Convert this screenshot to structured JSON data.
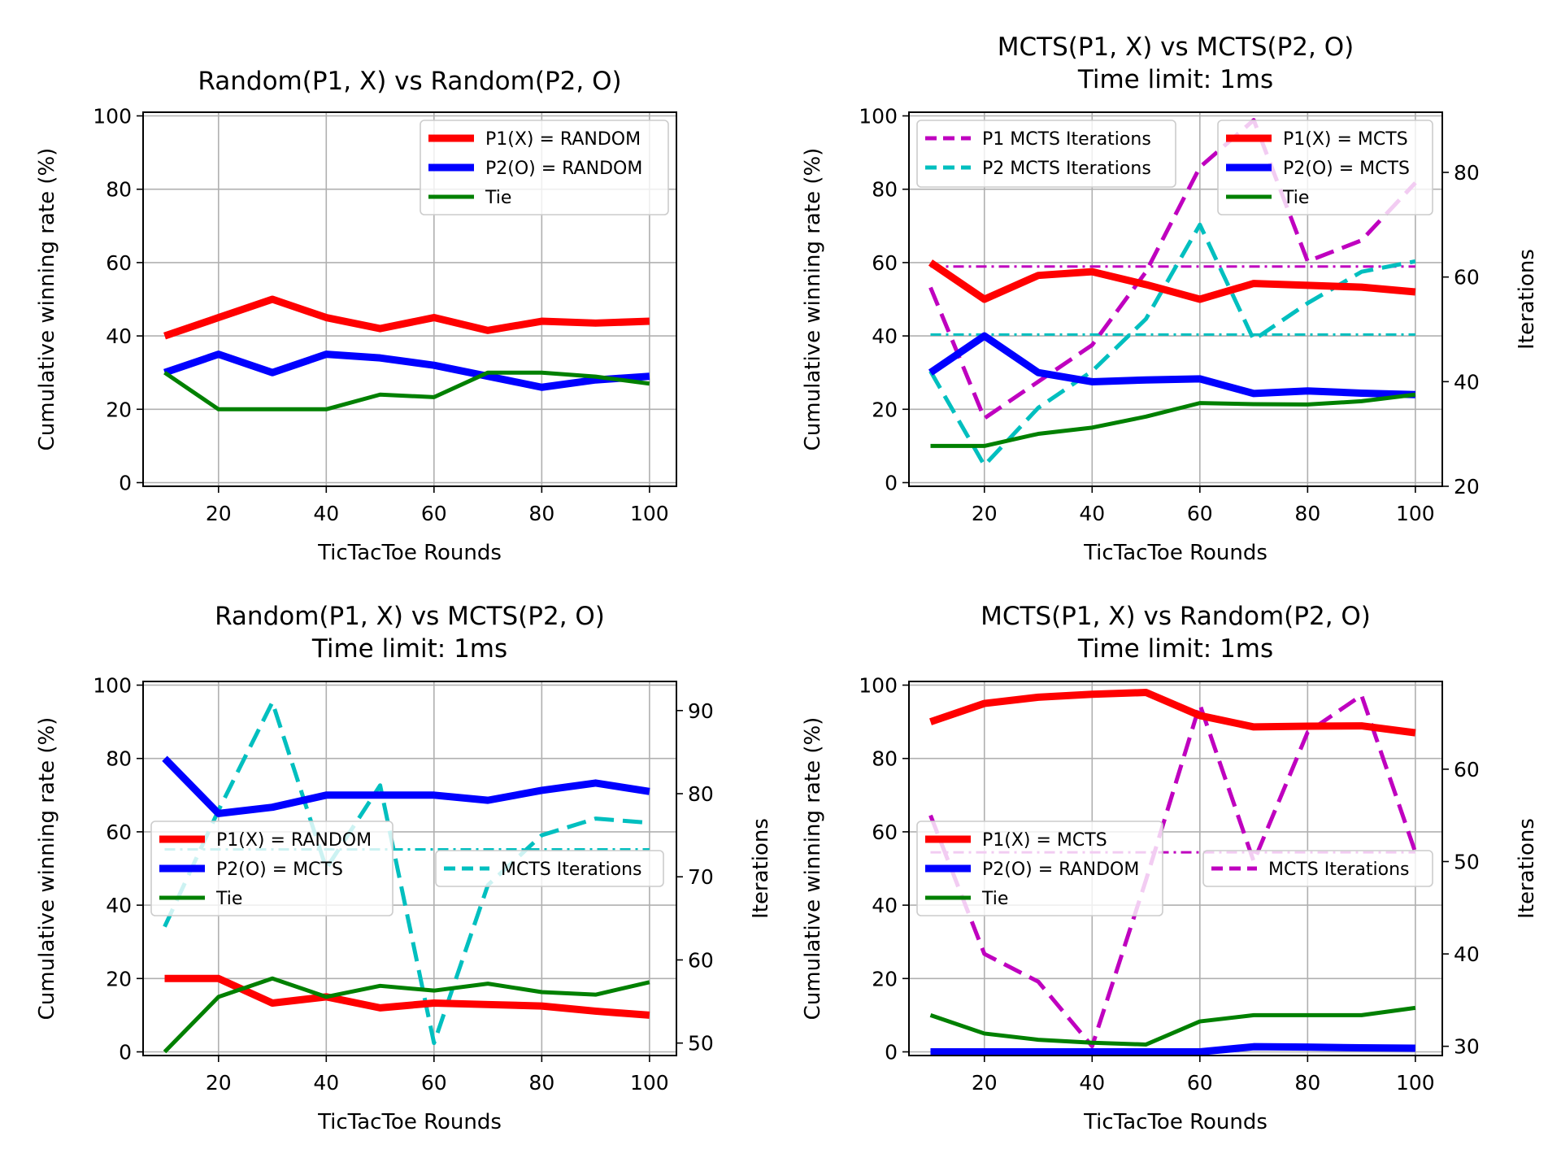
{
  "chart_data": [
    {
      "type": "line",
      "title": "Random(P1, X) vs Random(P2, O)",
      "xlabel": "TicTacToe Rounds",
      "ylabel": "Cumulative winning rate (%)",
      "xlim": [
        6,
        105
      ],
      "ylim": [
        -1,
        101
      ],
      "xticks": [
        20,
        40,
        60,
        80,
        100
      ],
      "yticks": [
        0,
        20,
        40,
        60,
        80,
        100
      ],
      "grid": true,
      "x": [
        10,
        20,
        30,
        40,
        50,
        60,
        70,
        80,
        90,
        100
      ],
      "series": [
        {
          "name": "P1(X) = RANDOM",
          "color": "#ff0000",
          "style": "solid",
          "width": "thick",
          "values": [
            40,
            45,
            50,
            45,
            42,
            45,
            41.5,
            44,
            43.5,
            44
          ]
        },
        {
          "name": "P2(O) = RANDOM",
          "color": "#0000ff",
          "style": "solid",
          "width": "thick",
          "values": [
            30,
            35,
            30,
            35,
            34,
            32,
            29,
            26,
            28,
            29
          ]
        },
        {
          "name": "Tie",
          "color": "#008000",
          "style": "solid",
          "width": "thin",
          "values": [
            30,
            20,
            20,
            20,
            24,
            23.3,
            30,
            30,
            28.9,
            27
          ]
        }
      ],
      "legend": {
        "position": "top-right",
        "entries": [
          "P1(X) = RANDOM",
          "P2(O) = RANDOM",
          "Tie"
        ]
      }
    },
    {
      "type": "line",
      "title": "MCTS(P1, X) vs MCTS(P2, O)\nTime limit: 1ms",
      "xlabel": "TicTacToe Rounds",
      "ylabel": "Cumulative winning rate (%)",
      "y2label": "Iterations",
      "xlim": [
        6,
        105
      ],
      "ylim": [
        -1,
        101
      ],
      "y2lim": [
        20,
        91.5
      ],
      "xticks": [
        20,
        40,
        60,
        80,
        100
      ],
      "yticks": [
        0,
        20,
        40,
        60,
        80,
        100
      ],
      "y2ticks": [
        20,
        40,
        60,
        80
      ],
      "grid": true,
      "x": [
        10,
        20,
        30,
        40,
        50,
        60,
        70,
        80,
        90,
        100
      ],
      "series": [
        {
          "name": "P1(X) = MCTS",
          "color": "#ff0000",
          "style": "solid",
          "width": "thick",
          "values": [
            60,
            50,
            56.5,
            57.5,
            54,
            50,
            54.3,
            53.8,
            53.3,
            52
          ]
        },
        {
          "name": "P2(O) = MCTS",
          "color": "#0000ff",
          "style": "solid",
          "width": "thick",
          "values": [
            30,
            40,
            30,
            27.5,
            28,
            28.3,
            24.3,
            25,
            24.4,
            24
          ]
        },
        {
          "name": "Tie",
          "color": "#008000",
          "style": "solid",
          "width": "thin",
          "values": [
            10,
            10,
            13.3,
            15,
            18,
            21.7,
            21.4,
            21.3,
            22.2,
            24
          ]
        }
      ],
      "secondary_series": [
        {
          "name": "P1 MCTS Iterations",
          "color": "#bf00bf",
          "style": "dashed",
          "values": [
            58,
            33,
            40,
            47,
            61,
            81,
            90,
            63,
            67,
            78
          ]
        },
        {
          "name": "P2 MCTS Iterations",
          "color": "#00bfbf",
          "style": "dashed",
          "values": [
            42,
            24,
            35,
            42,
            52,
            70,
            48,
            55,
            61,
            63
          ]
        }
      ],
      "mean_lines": [
        {
          "color": "#bf00bf",
          "style": "dashdot",
          "value": 62
        },
        {
          "color": "#00bfbf",
          "style": "dashdot",
          "value": 49
        }
      ],
      "legends": [
        {
          "position": "top-left",
          "entries": [
            "P1 MCTS Iterations",
            "P2 MCTS Iterations"
          ]
        },
        {
          "position": "top-right",
          "entries": [
            "P1(X) = MCTS",
            "P2(O) = MCTS",
            "Tie"
          ]
        }
      ]
    },
    {
      "type": "line",
      "title": "Random(P1, X) vs MCTS(P2, O)\nTime limit: 1ms",
      "xlabel": "TicTacToe Rounds",
      "ylabel": "Cumulative winning rate (%)",
      "y2label": "Iterations",
      "xlim": [
        6,
        105
      ],
      "ylim": [
        -1,
        101
      ],
      "y2lim": [
        48.5,
        93.5
      ],
      "xticks": [
        20,
        40,
        60,
        80,
        100
      ],
      "yticks": [
        0,
        20,
        40,
        60,
        80,
        100
      ],
      "y2ticks": [
        50,
        60,
        70,
        80,
        90
      ],
      "grid": true,
      "x": [
        10,
        20,
        30,
        40,
        50,
        60,
        70,
        80,
        90,
        100
      ],
      "series": [
        {
          "name": "P1(X) = RANDOM",
          "color": "#ff0000",
          "style": "solid",
          "width": "thick",
          "values": [
            20,
            20,
            13.3,
            15,
            12,
            13.3,
            12.9,
            12.5,
            11.1,
            10
          ]
        },
        {
          "name": "P2(O) = MCTS",
          "color": "#0000ff",
          "style": "solid",
          "width": "thick",
          "values": [
            80,
            65,
            66.7,
            70,
            70,
            70,
            68.6,
            71.3,
            73.3,
            71
          ]
        },
        {
          "name": "Tie",
          "color": "#008000",
          "style": "solid",
          "width": "thin",
          "values": [
            0,
            15,
            20,
            15,
            18,
            16.7,
            18.6,
            16.3,
            15.6,
            19
          ]
        }
      ],
      "secondary_series": [
        {
          "name": "MCTS Iterations",
          "color": "#00bfbf",
          "style": "dashed",
          "values": [
            64,
            78,
            91,
            71,
            81,
            50,
            69,
            75,
            77,
            76.5
          ]
        }
      ],
      "mean_lines": [
        {
          "color": "#00bfbf",
          "style": "dashdot",
          "value": 73.3
        }
      ],
      "legends": [
        {
          "position": "center-left",
          "entries": [
            "P1(X) = RANDOM",
            "P2(O) = MCTS",
            "Tie"
          ]
        },
        {
          "position": "center-right",
          "entries": [
            "MCTS Iterations"
          ]
        }
      ]
    },
    {
      "type": "line",
      "title": "MCTS(P1, X) vs Random(P2, O)\nTime limit: 1ms",
      "xlabel": "TicTacToe Rounds",
      "ylabel": "Cumulative winning rate (%)",
      "y2label": "Iterations",
      "xlim": [
        6,
        105
      ],
      "ylim": [
        -1,
        101
      ],
      "y2lim": [
        29,
        69.5
      ],
      "xticks": [
        20,
        40,
        60,
        80,
        100
      ],
      "yticks": [
        0,
        20,
        40,
        60,
        80,
        100
      ],
      "y2ticks": [
        30,
        40,
        50,
        60
      ],
      "grid": true,
      "x": [
        10,
        20,
        30,
        40,
        50,
        60,
        70,
        80,
        90,
        100
      ],
      "series": [
        {
          "name": "P1(X) = MCTS",
          "color": "#ff0000",
          "style": "solid",
          "width": "thick",
          "values": [
            90,
            95,
            96.7,
            97.5,
            98,
            91.7,
            88.6,
            88.8,
            88.9,
            87
          ]
        },
        {
          "name": "P2(O) = RANDOM",
          "color": "#0000ff",
          "style": "solid",
          "width": "thick",
          "values": [
            0,
            0,
            0,
            0,
            0,
            0,
            1.4,
            1.3,
            1.1,
            1
          ]
        },
        {
          "name": "Tie",
          "color": "#008000",
          "style": "solid",
          "width": "thin",
          "values": [
            10,
            5,
            3.3,
            2.5,
            2,
            8.3,
            10,
            10,
            10,
            12
          ]
        }
      ],
      "secondary_series": [
        {
          "name": "MCTS Iterations",
          "color": "#bf00bf",
          "style": "dashed",
          "values": [
            55,
            40,
            37,
            30,
            48,
            67,
            50,
            64,
            68,
            51
          ]
        }
      ],
      "mean_lines": [
        {
          "color": "#bf00bf",
          "style": "dashdot",
          "value": 51
        }
      ],
      "legends": [
        {
          "position": "center-left",
          "entries": [
            "P1(X) = MCTS",
            "P2(O) = RANDOM",
            "Tie"
          ]
        },
        {
          "position": "center-right",
          "entries": [
            "MCTS Iterations"
          ]
        }
      ]
    }
  ]
}
